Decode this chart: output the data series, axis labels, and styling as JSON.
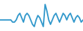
{
  "y": [
    0,
    0,
    0,
    0,
    0,
    0,
    0,
    -1,
    -1,
    0,
    2,
    3,
    1,
    -1,
    2,
    3,
    2,
    0,
    -2,
    -3,
    0,
    2,
    1,
    -1,
    -3,
    7,
    4,
    0,
    -2,
    0,
    2,
    3,
    1,
    -1,
    1,
    3,
    2,
    0,
    2,
    3,
    1,
    -1,
    1,
    2,
    1,
    -1,
    0
  ],
  "line_color": "#3399cc",
  "linewidth": 1.4,
  "bg_color": "#ffffff",
  "ylim": [
    -5,
    9
  ],
  "xlim": [
    0,
    46
  ]
}
